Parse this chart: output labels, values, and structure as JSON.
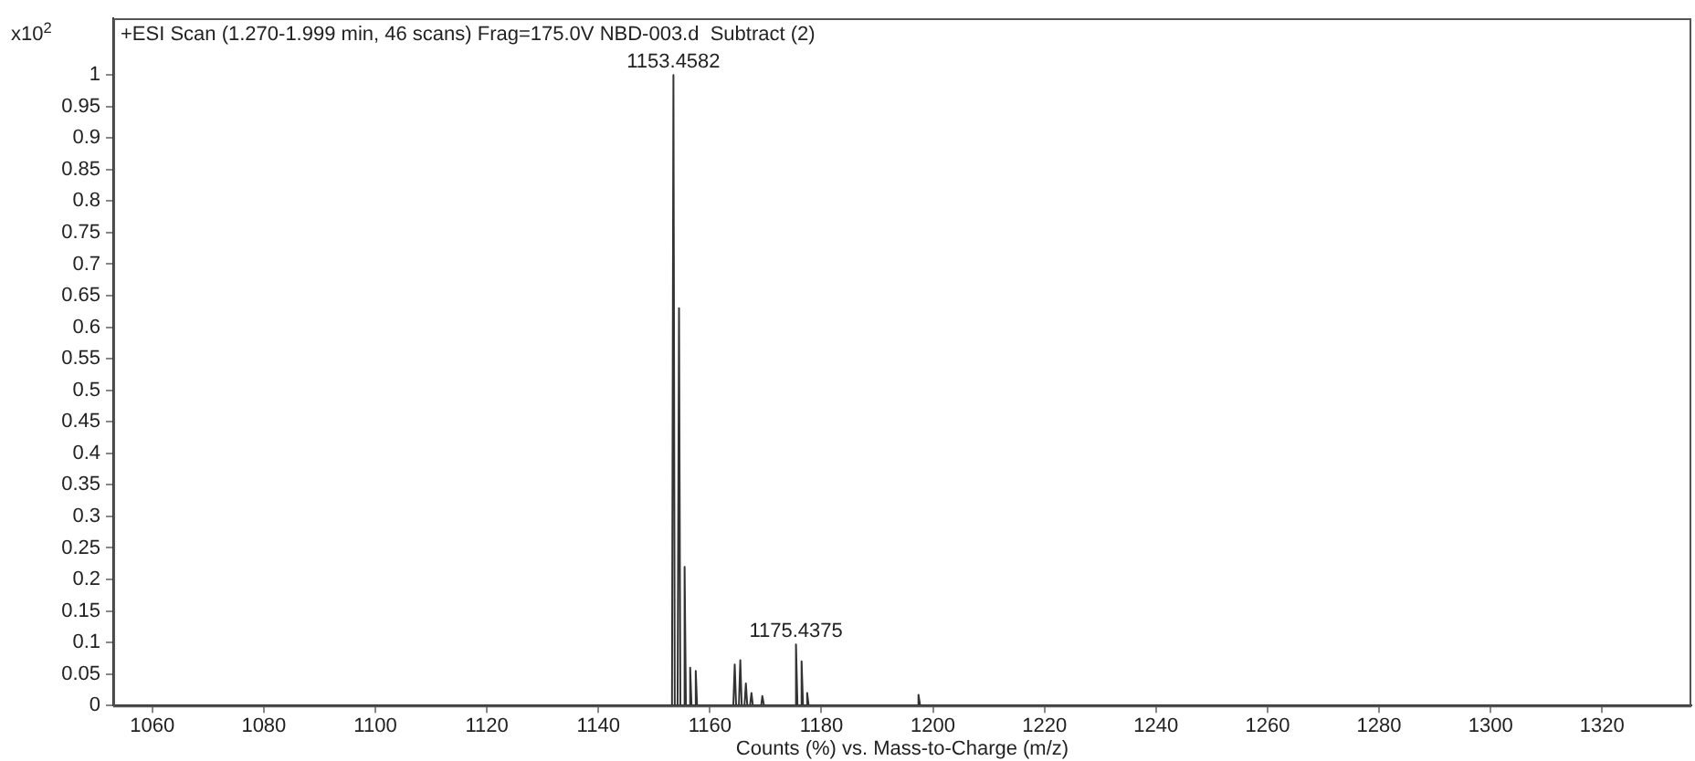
{
  "chart_data": {
    "type": "line",
    "title": "+ESI Scan (1.270-1.999 min, 46 scans) Frag=175.0V NBD-003.d  Subtract (2)",
    "xlabel": "Counts (%) vs. Mass-to-Charge (m/z)",
    "ylabel": "x10$^{2}$",
    "series": [
      {
        "color": "#333333",
        "x": [
          1053,
          1153.2,
          1153.4582,
          1153.7,
          1154.2,
          1154.46,
          1154.7,
          1155.2,
          1155.46,
          1155.7,
          1156.2,
          1156.46,
          1156.7,
          1157.2,
          1157.46,
          1157.7,
          1164.2,
          1164.45,
          1164.7,
          1165.2,
          1165.45,
          1165.7,
          1166.2,
          1166.45,
          1166.7,
          1167.2,
          1167.45,
          1167.7,
          1169.2,
          1169.4,
          1169.7,
          1175.2,
          1175.4375,
          1175.7,
          1176.2,
          1176.44,
          1176.7,
          1177.2,
          1177.44,
          1177.7,
          1197.2,
          1197.4,
          1197.7,
          1336
        ],
        "values": [
          0,
          0,
          1,
          0,
          0,
          0.63,
          0,
          0,
          0.22,
          0,
          0,
          0.06,
          0,
          0,
          0.055,
          0,
          0,
          0.065,
          0,
          0,
          0.072,
          0,
          0,
          0.035,
          0,
          0,
          0.02,
          0,
          0,
          0.015,
          0,
          0,
          0.097,
          0,
          0,
          0.07,
          0,
          0,
          0.02,
          0,
          0,
          0.017,
          0,
          0
        ]
      }
    ],
    "xlim": [
      1053,
      1336
    ],
    "xticks": [
      1060,
      1080,
      1100,
      1120,
      1140,
      1160,
      1180,
      1200,
      1220,
      1240,
      1260,
      1280,
      1300,
      1320
    ],
    "ylim": [
      0,
      1.09
    ],
    "yticks": [
      0,
      0.05,
      0.1,
      0.15,
      0.2,
      0.25,
      0.3,
      0.35,
      0.4,
      0.45,
      0.5,
      0.55,
      0.6,
      0.65,
      0.7,
      0.75,
      0.8,
      0.85,
      0.9,
      0.95,
      1
    ],
    "annotations": [
      {
        "text": "1153.4582",
        "x": 1153.4582,
        "y": 1
      },
      {
        "text": "1175.4375",
        "x": 1175.4375,
        "y": 0.097
      }
    ],
    "grid": false,
    "legend": false,
    "marker": "none",
    "line_style": "solid"
  }
}
